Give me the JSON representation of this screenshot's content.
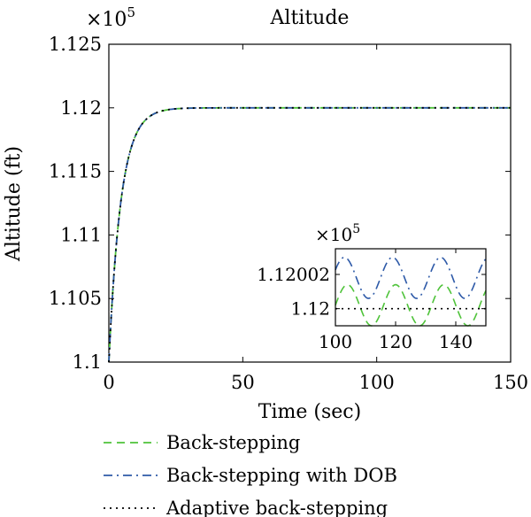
{
  "chart_data": {
    "type": "line",
    "title": "Altitude",
    "xlabel": "Time (sec)",
    "ylabel": "Altitude (ft)",
    "exponent_label": "×10",
    "exponent_power": "5",
    "xlim": [
      0,
      150
    ],
    "ylim": [
      1.1,
      1.125
    ],
    "x_ticks": [
      0,
      50,
      100,
      150
    ],
    "y_ticks": [
      1.1,
      1.105,
      1.11,
      1.115,
      1.12,
      1.125
    ],
    "x_tick_labels": [
      "0",
      "50",
      "100",
      "150"
    ],
    "y_tick_labels": [
      "1.1",
      "1.105",
      "1.11",
      "1.115",
      "1.12",
      "1.125"
    ],
    "grid": false,
    "legend_position": "below",
    "series": [
      {
        "name": "Back-stepping",
        "color": "#4fc33a",
        "dash": "dashed"
      },
      {
        "name": "Back-stepping with DOB",
        "color": "#2e5aa8",
        "dash": "dashdot"
      },
      {
        "name": "Adaptive back-stepping",
        "color": "#000000",
        "dash": "dotted"
      }
    ],
    "response": {
      "y0": 1.1,
      "y_final": 1.12,
      "time_constant": 4.5
    },
    "inset": {
      "exponent_label": "×10",
      "exponent_power": "5",
      "xlim": [
        100,
        150
      ],
      "ylim": [
        1.11999,
        1.120035
      ],
      "x_ticks": [
        100,
        120,
        140
      ],
      "x_tick_labels": [
        "100",
        "120",
        "140"
      ],
      "y_ticks": [
        1.12,
        1.12002
      ],
      "y_tick_labels": [
        "1.12",
        "1.12002"
      ],
      "series_levels": {
        "Back-stepping": {
          "center": 1.120002,
          "amplitude": 1.2e-05,
          "period": 16
        },
        "Back-stepping with DOB": {
          "center": 1.120018,
          "amplitude": 1.2e-05,
          "period": 16
        },
        "Adaptive back-stepping": {
          "center": 1.12,
          "amplitude": 0,
          "period": 16
        }
      }
    }
  }
}
